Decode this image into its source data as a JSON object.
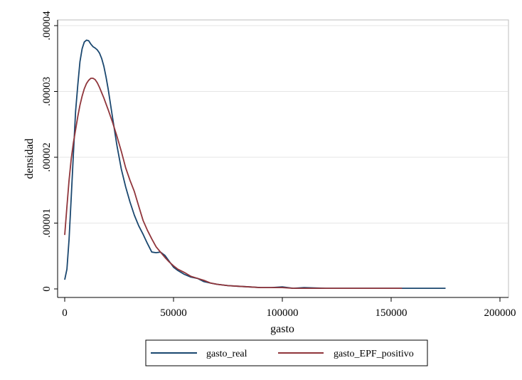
{
  "chart_data": {
    "type": "line",
    "xlabel": "gasto",
    "ylabel": "densidad",
    "xlim": [
      0,
      200000
    ],
    "ylim": [
      0,
      4e-05
    ],
    "x_ticks": [
      0,
      50000,
      100000,
      150000,
      200000
    ],
    "x_tick_labels": [
      "0",
      "50000",
      "100000",
      "150000",
      "200000"
    ],
    "y_ticks": [
      0,
      1e-05,
      2e-05,
      3e-05,
      4e-05
    ],
    "y_tick_labels": [
      "0",
      ".00001",
      ".00002",
      ".00003",
      ".00004"
    ],
    "grid": "horizontal",
    "legend_position": "bottom",
    "series": [
      {
        "name": "gasto_real",
        "color": "#1a476f",
        "x": [
          0,
          1000,
          2000,
          3000,
          4000,
          5000,
          6000,
          7000,
          8000,
          9000,
          10000,
          11000,
          12000,
          13000,
          14000,
          15000,
          16000,
          17000,
          18000,
          19000,
          20000,
          22000,
          24000,
          26000,
          28000,
          30000,
          32000,
          34000,
          36000,
          38000,
          40000,
          42000,
          44000,
          46000,
          48000,
          50000,
          52000,
          55000,
          58000,
          61000,
          64000,
          67000,
          70000,
          75000,
          80000,
          85000,
          90000,
          95000,
          100000,
          105000,
          110000,
          120000,
          130000,
          140000,
          150000,
          160000,
          170000,
          175000
        ],
        "y": [
          1.4e-06,
          3e-06,
          7.5e-06,
          1.4e-05,
          2.05e-05,
          2.7e-05,
          3.1e-05,
          3.45e-05,
          3.65e-05,
          3.75e-05,
          3.78e-05,
          3.77e-05,
          3.72e-05,
          3.68e-05,
          3.66e-05,
          3.63e-05,
          3.58e-05,
          3.5e-05,
          3.38e-05,
          3.22e-05,
          3.03e-05,
          2.6e-05,
          2.18e-05,
          1.82e-05,
          1.55e-05,
          1.32e-05,
          1.12e-05,
          9.6e-06,
          8.3e-06,
          6.9e-06,
          5.6e-06,
          5.5e-06,
          5.6e-06,
          5.1e-06,
          4.2e-06,
          3.3e-06,
          2.8e-06,
          2.2e-06,
          1.8e-06,
          1.6e-06,
          1.1e-06,
          9e-07,
          7e-07,
          5e-07,
          4e-07,
          3e-07,
          2e-07,
          2e-07,
          3e-07,
          1e-07,
          2e-07,
          1e-07,
          1e-07,
          1e-07,
          1e-07,
          1e-07,
          1e-07,
          1e-07
        ]
      },
      {
        "name": "gasto_EPF_positivo",
        "color": "#90353b",
        "x": [
          0,
          1000,
          2000,
          3000,
          4000,
          5000,
          6000,
          7000,
          8000,
          9000,
          10000,
          11000,
          12000,
          13000,
          14000,
          15000,
          16000,
          17000,
          18000,
          19000,
          20000,
          22000,
          24000,
          26000,
          28000,
          30000,
          32000,
          34000,
          36000,
          38000,
          40000,
          42000,
          44000,
          46000,
          48000,
          50000,
          52000,
          55000,
          58000,
          61000,
          64000,
          67000,
          70000,
          75000,
          80000,
          85000,
          90000,
          95000,
          100000,
          105000,
          110000,
          120000,
          130000,
          140000,
          150000,
          155000
        ],
        "y": [
          8.2e-06,
          1.25e-05,
          1.65e-05,
          1.98e-05,
          2.22e-05,
          2.42e-05,
          2.62e-05,
          2.79e-05,
          2.93e-05,
          3.04e-05,
          3.12e-05,
          3.17e-05,
          3.2e-05,
          3.2e-05,
          3.18e-05,
          3.13e-05,
          3.06e-05,
          2.98e-05,
          2.9e-05,
          2.81e-05,
          2.72e-05,
          2.53e-05,
          2.32e-05,
          2.09e-05,
          1.84e-05,
          1.65e-05,
          1.48e-05,
          1.26e-05,
          1.04e-05,
          8.9e-06,
          7.6e-06,
          6.4e-06,
          5.6e-06,
          4.8e-06,
          4.1e-06,
          3.5e-06,
          3e-06,
          2.5e-06,
          1.9e-06,
          1.6e-06,
          1.3e-06,
          9e-07,
          7e-07,
          5e-07,
          4e-07,
          3e-07,
          2e-07,
          2e-07,
          2e-07,
          1e-07,
          1e-07,
          1e-07,
          1e-07,
          1e-07,
          1e-07,
          1e-07
        ]
      }
    ]
  }
}
